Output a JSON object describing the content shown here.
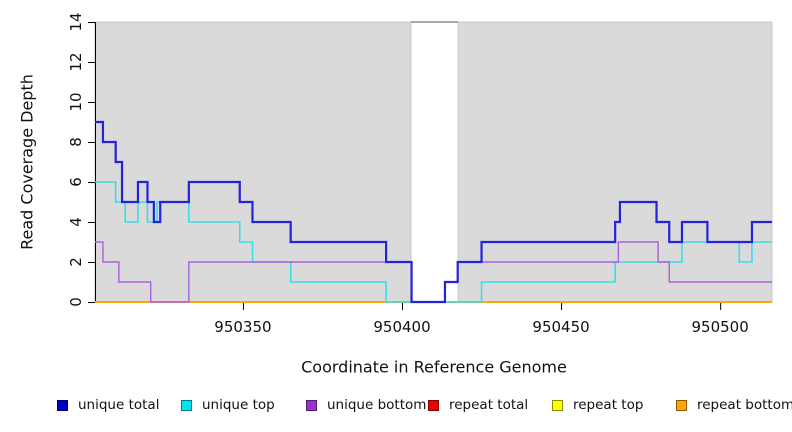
{
  "figure": {
    "kind": "read-coverage-step-plot",
    "background_color": "#ffffff",
    "plot_background_color": "#dadada",
    "plot_border_color": "#c8c8c8",
    "gap_top_line_color": "#8c8c8c",
    "axis_color": "#000000"
  },
  "chart_data": {
    "type": "line",
    "subtype": "step-coverage",
    "title": "",
    "xlabel": "Coordinate in Reference Genome",
    "ylabel": "Read Coverage Depth",
    "xlim": [
      950303.5,
      950516.3
    ],
    "ylim": [
      0,
      14
    ],
    "grid": false,
    "legend_position": "bottom",
    "x_ticks": [
      "950350",
      "950400",
      "950450",
      "950500"
    ],
    "x_tick_values": [
      950350,
      950400,
      950450,
      950500
    ],
    "y_ticks": [
      "0",
      "2",
      "4",
      "6",
      "8",
      "10",
      "12",
      "14"
    ],
    "y_tick_values": [
      0,
      2,
      4,
      6,
      8,
      10,
      12,
      14
    ],
    "coverage_regions": [
      [
        950303.5,
        950402.8
      ],
      [
        950417.6,
        950516.3
      ]
    ],
    "gap_region": [
      950402.8,
      950417.6
    ],
    "paint_order": [
      3,
      4,
      5,
      1,
      2,
      0
    ],
    "series": [
      {
        "name": "unique total",
        "color": "#2323d9",
        "legend_fill": "#0000c8",
        "line_width": 2.2,
        "steps": [
          [
            950303.5,
            9
          ],
          [
            950306,
            8
          ],
          [
            950310,
            7
          ],
          [
            950312,
            5
          ],
          [
            950317,
            6
          ],
          [
            950320,
            5
          ],
          [
            950322,
            4
          ],
          [
            950324,
            5
          ],
          [
            950333,
            6
          ],
          [
            950349,
            5
          ],
          [
            950353,
            4
          ],
          [
            950365,
            3
          ],
          [
            950395,
            2
          ],
          [
            950403,
            0
          ],
          [
            950413.5,
            1
          ],
          [
            950417.5,
            2
          ],
          [
            950425,
            3
          ],
          [
            950467,
            4
          ],
          [
            950468.5,
            5
          ],
          [
            950480,
            4
          ],
          [
            950484,
            3
          ],
          [
            950488,
            4
          ],
          [
            950496,
            3
          ],
          [
            950510,
            4
          ]
        ]
      },
      {
        "name": "unique top",
        "color": "#3adde8",
        "legend_fill": "#00e5ee",
        "line_width": 1.6,
        "steps": [
          [
            950303.5,
            6
          ],
          [
            950310,
            5
          ],
          [
            950313,
            4
          ],
          [
            950317,
            5
          ],
          [
            950320,
            4
          ],
          [
            950323,
            5
          ],
          [
            950333,
            4
          ],
          [
            950349,
            3
          ],
          [
            950353,
            2
          ],
          [
            950365,
            1
          ],
          [
            950395,
            0
          ],
          [
            950425,
            1
          ],
          [
            950467,
            2
          ],
          [
            950488,
            3
          ],
          [
            950506,
            2
          ],
          [
            950510,
            3
          ]
        ]
      },
      {
        "name": "unique bottom",
        "color": "#ac5fd9",
        "legend_fill": "#9932cc",
        "line_width": 1.4,
        "steps": [
          [
            950303.5,
            3
          ],
          [
            950306,
            2
          ],
          [
            950311,
            1
          ],
          [
            950321,
            0
          ],
          [
            950333,
            2
          ],
          [
            950403,
            0
          ],
          [
            950413.5,
            1
          ],
          [
            950417.5,
            2
          ],
          [
            950468,
            3
          ],
          [
            950480.5,
            2
          ],
          [
            950484,
            1
          ]
        ]
      },
      {
        "name": "repeat total",
        "color": "#e60000",
        "legend_fill": "#ee0000",
        "line_width": 1.4,
        "steps": [
          [
            950303.5,
            0
          ]
        ]
      },
      {
        "name": "repeat top",
        "color": "#ffff00",
        "legend_fill": "#ffff00",
        "line_width": 1.4,
        "steps": [
          [
            950303.5,
            0
          ]
        ]
      },
      {
        "name": "repeat bottom",
        "color": "#ffa500",
        "legend_fill": "#ffa500",
        "line_width": 1.8,
        "steps": [
          [
            950303.5,
            0
          ]
        ]
      }
    ]
  }
}
